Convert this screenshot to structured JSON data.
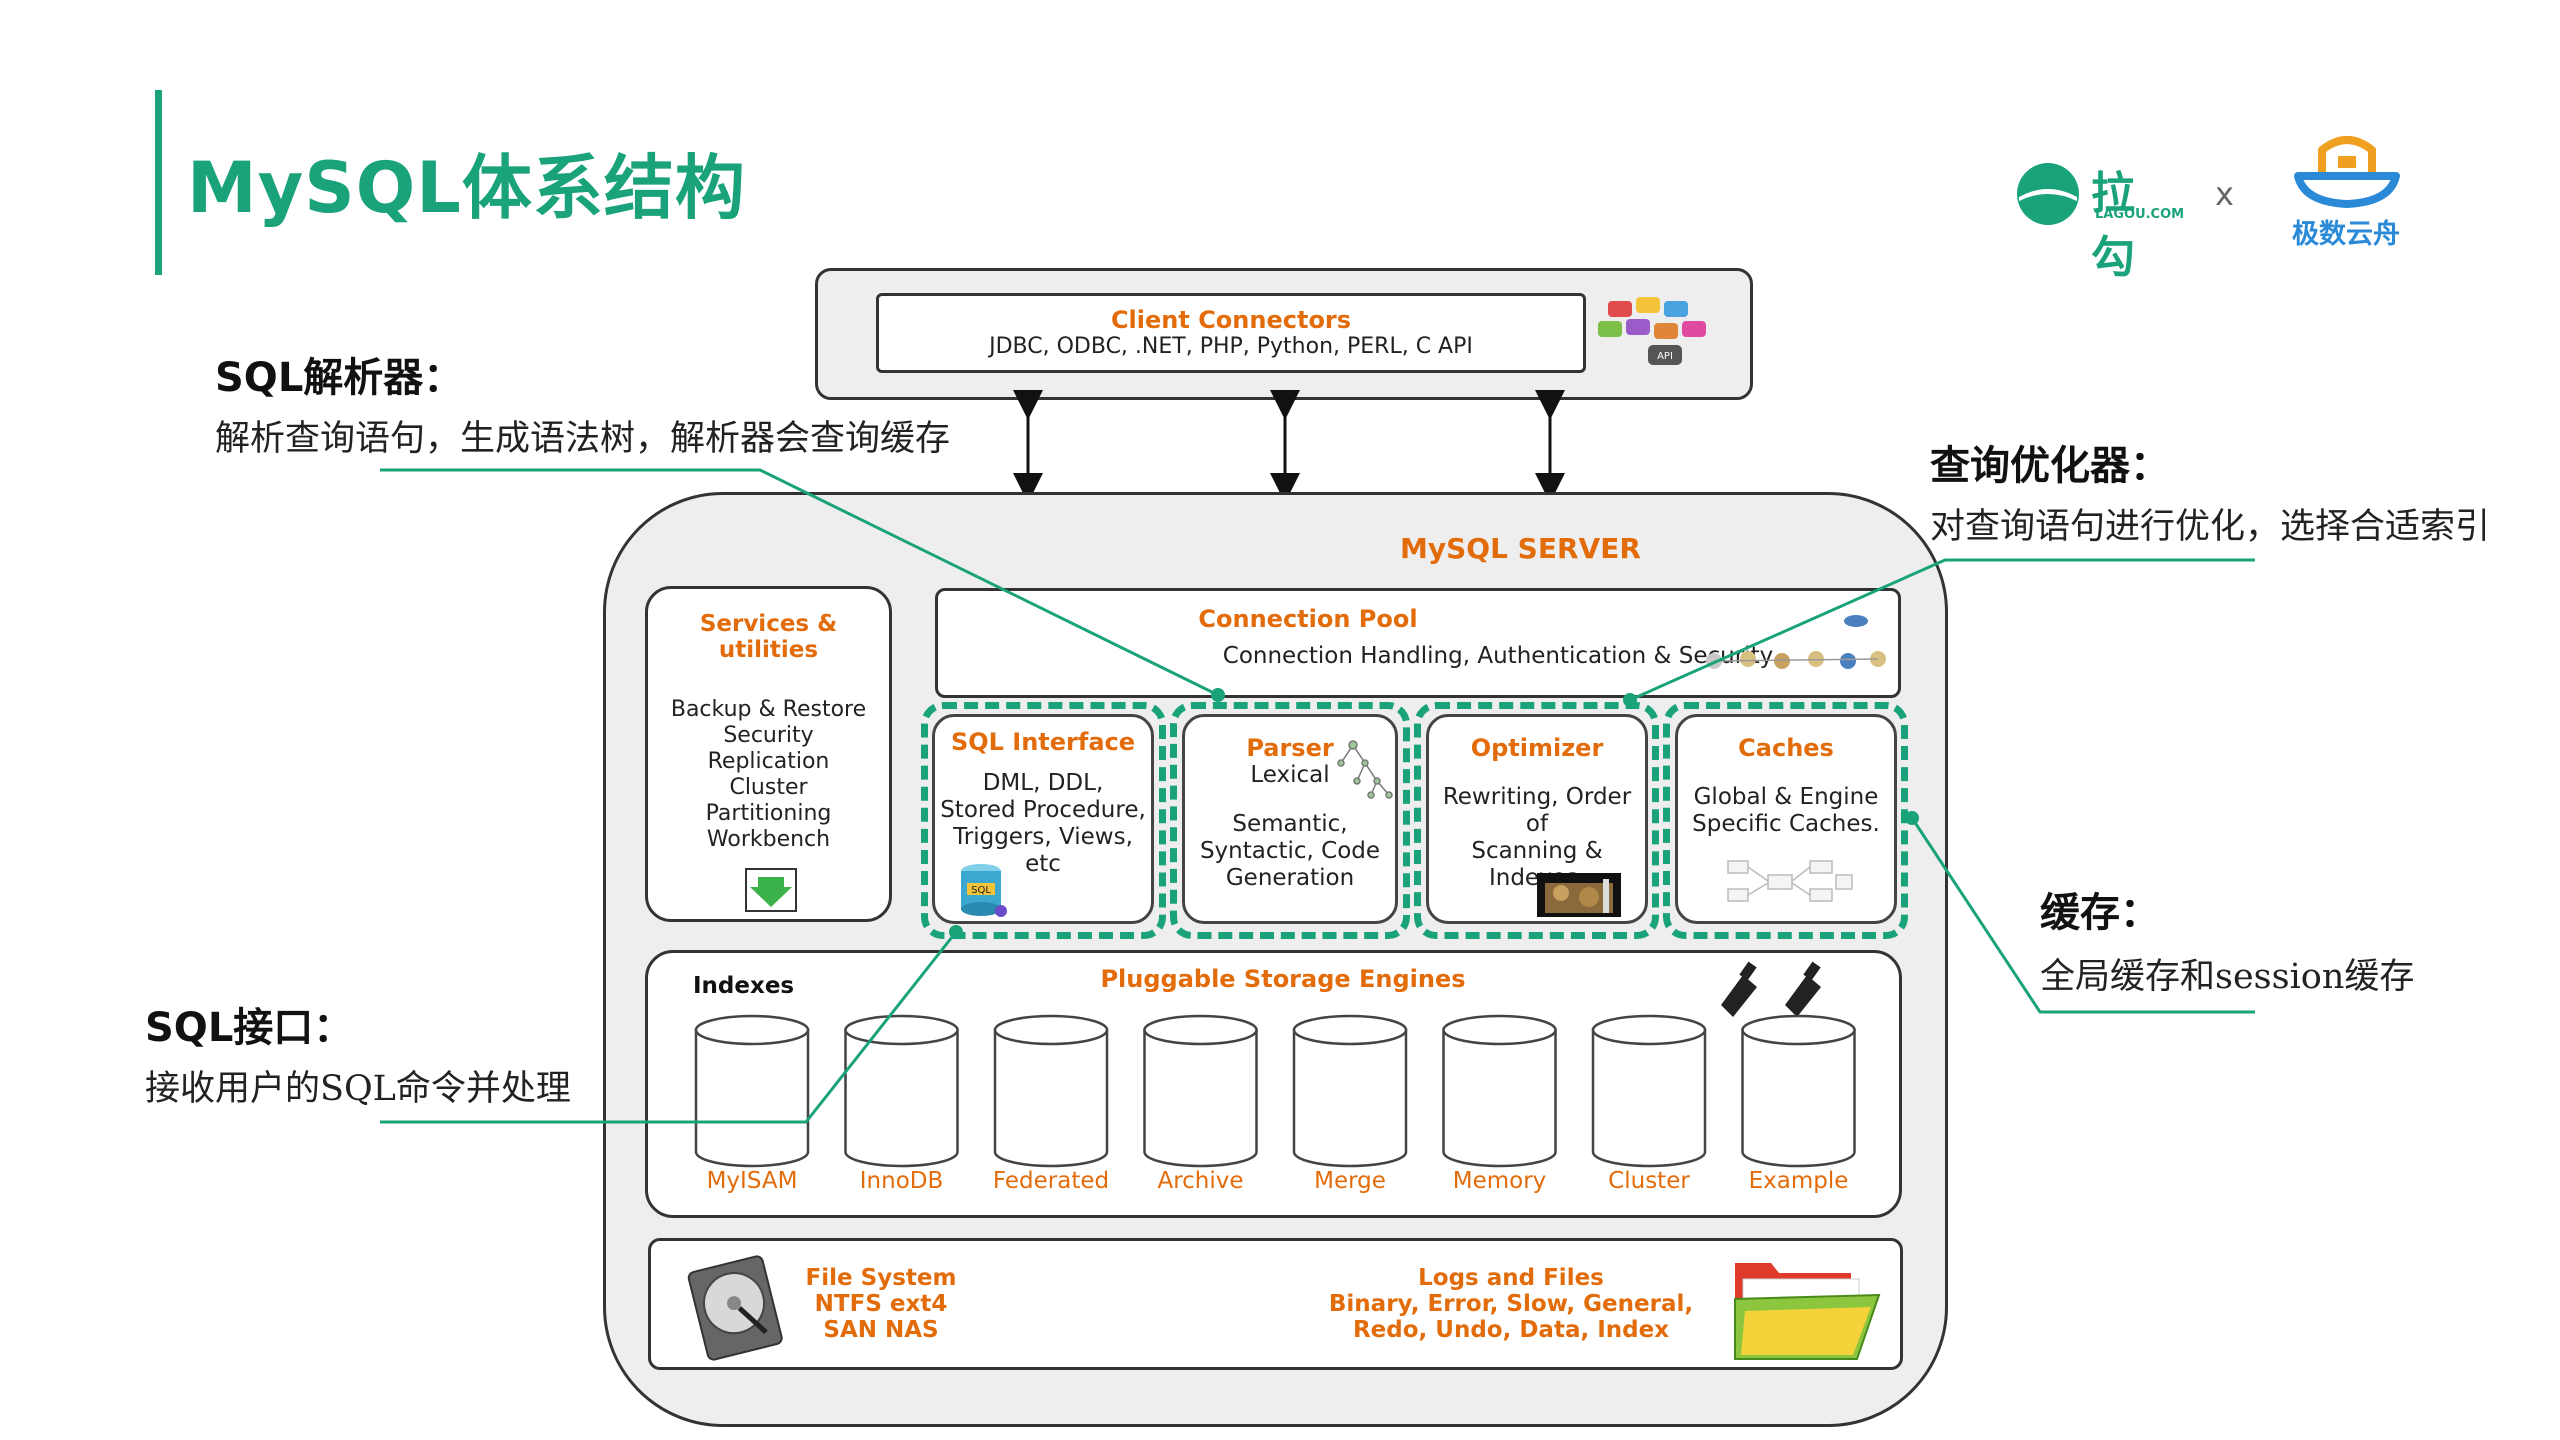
{
  "page": {
    "title": "MySQL体系结构",
    "logos": {
      "lagou": "拉勾",
      "lagou_sub": "LAGOU.COM",
      "x": "x",
      "jishu": "极数云舟"
    }
  },
  "annotations": {
    "parser": {
      "title": "SQL解析器：",
      "body": "解析查询语句，生成语法树，解析器会查询缓存"
    },
    "optimizer": {
      "title": "查询优化器：",
      "body": "对查询语句进行优化，选择合适索引"
    },
    "cache": {
      "title": "缓存：",
      "body": "全局缓存和session缓存"
    },
    "interface": {
      "title": "SQL接口：",
      "body": "接收用户的SQL命令并处理"
    }
  },
  "diagram": {
    "client": {
      "title": "Client Connectors",
      "subtitle": "JDBC, ODBC, .NET, PHP, Python, PERL, C API",
      "api_label": "API"
    },
    "server_title": "MySQL SERVER",
    "services": {
      "title": "Services & utilities",
      "items": [
        "Backup & Restore",
        "Security",
        "Replication",
        "Cluster",
        "Partitioning",
        "Workbench"
      ]
    },
    "pool": {
      "title": "Connection Pool",
      "subtitle": "Connection Handling, Authentication & Security"
    },
    "sql_interface": {
      "title": "SQL Interface",
      "body": [
        "DML, DDL,",
        "Stored Procedure,",
        "Triggers, Views,",
        "etc"
      ],
      "icon_label": "SQL"
    },
    "parser": {
      "title": "Parser",
      "body_top": "Lexical",
      "body": [
        "Semantic,",
        "Syntactic, Code",
        "Generation"
      ]
    },
    "optimizer": {
      "title": "Optimizer",
      "body": [
        "Rewriting, Order of",
        "Scanning &",
        "Indexes."
      ]
    },
    "caches": {
      "title": "Caches",
      "body": [
        "Global & Engine",
        "Specific Caches."
      ]
    },
    "storage": {
      "indexes_label": "Indexes",
      "title": "Pluggable Storage Engines",
      "engines": [
        "MyISAM",
        "InnoDB",
        "Federated",
        "Archive",
        "Merge",
        "Memory",
        "Cluster",
        "Example"
      ]
    },
    "filesystem": {
      "title": "File System",
      "lines": [
        "NTFS ext4",
        "SAN NAS"
      ]
    },
    "logs": {
      "title": "Logs and Files",
      "lines": [
        "Binary, Error, Slow, General,",
        "Redo, Undo, Data, Index"
      ]
    }
  },
  "colors": {
    "accent_green": "#1aa37a",
    "orange": "#e36c0a",
    "logo_blue": "#2a8ad8"
  }
}
